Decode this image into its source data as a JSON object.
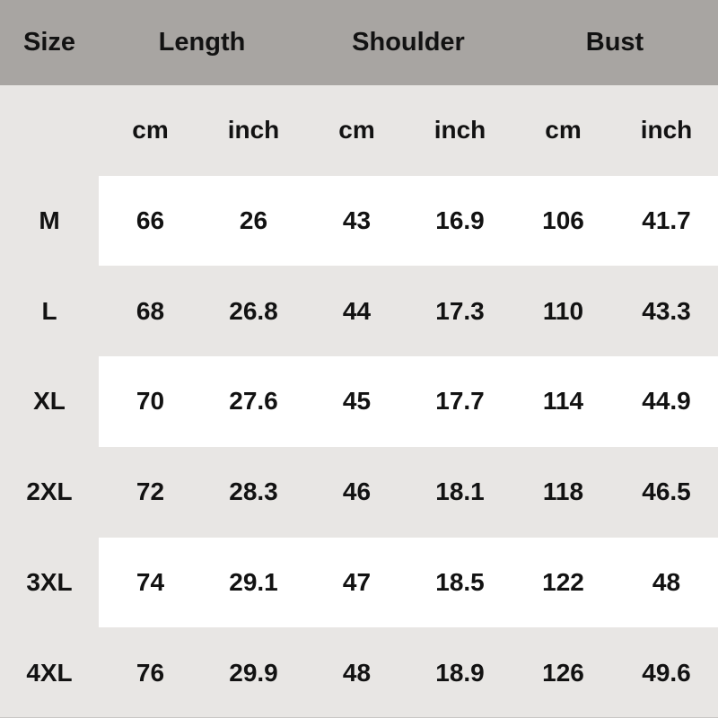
{
  "colors": {
    "header_bg": "#a8a5a2",
    "body_bg": "#e8e6e4",
    "row_highlight_bg": "#ffffff",
    "text": "#121212"
  },
  "chart_data": {
    "type": "table",
    "column_groups": [
      {
        "label": "Size"
      },
      {
        "label": "Length",
        "units": [
          "cm",
          "inch"
        ]
      },
      {
        "label": "Shoulder",
        "units": [
          "cm",
          "inch"
        ]
      },
      {
        "label": "Bust",
        "units": [
          "cm",
          "inch"
        ]
      }
    ],
    "unit_row": [
      "cm",
      "inch",
      "cm",
      "inch",
      "cm",
      "inch"
    ],
    "rows": [
      {
        "size": "M",
        "highlight": true,
        "values": [
          "66",
          "26",
          "43",
          "16.9",
          "106",
          "41.7"
        ]
      },
      {
        "size": "L",
        "highlight": false,
        "values": [
          "68",
          "26.8",
          "44",
          "17.3",
          "110",
          "43.3"
        ]
      },
      {
        "size": "XL",
        "highlight": true,
        "values": [
          "70",
          "27.6",
          "45",
          "17.7",
          "114",
          "44.9"
        ]
      },
      {
        "size": "2XL",
        "highlight": false,
        "values": [
          "72",
          "28.3",
          "46",
          "18.1",
          "118",
          "46.5"
        ]
      },
      {
        "size": "3XL",
        "highlight": true,
        "values": [
          "74",
          "29.1",
          "47",
          "18.5",
          "122",
          "48"
        ]
      },
      {
        "size": "4XL",
        "highlight": false,
        "values": [
          "76",
          "29.9",
          "48",
          "18.9",
          "126",
          "49.6"
        ]
      }
    ]
  }
}
